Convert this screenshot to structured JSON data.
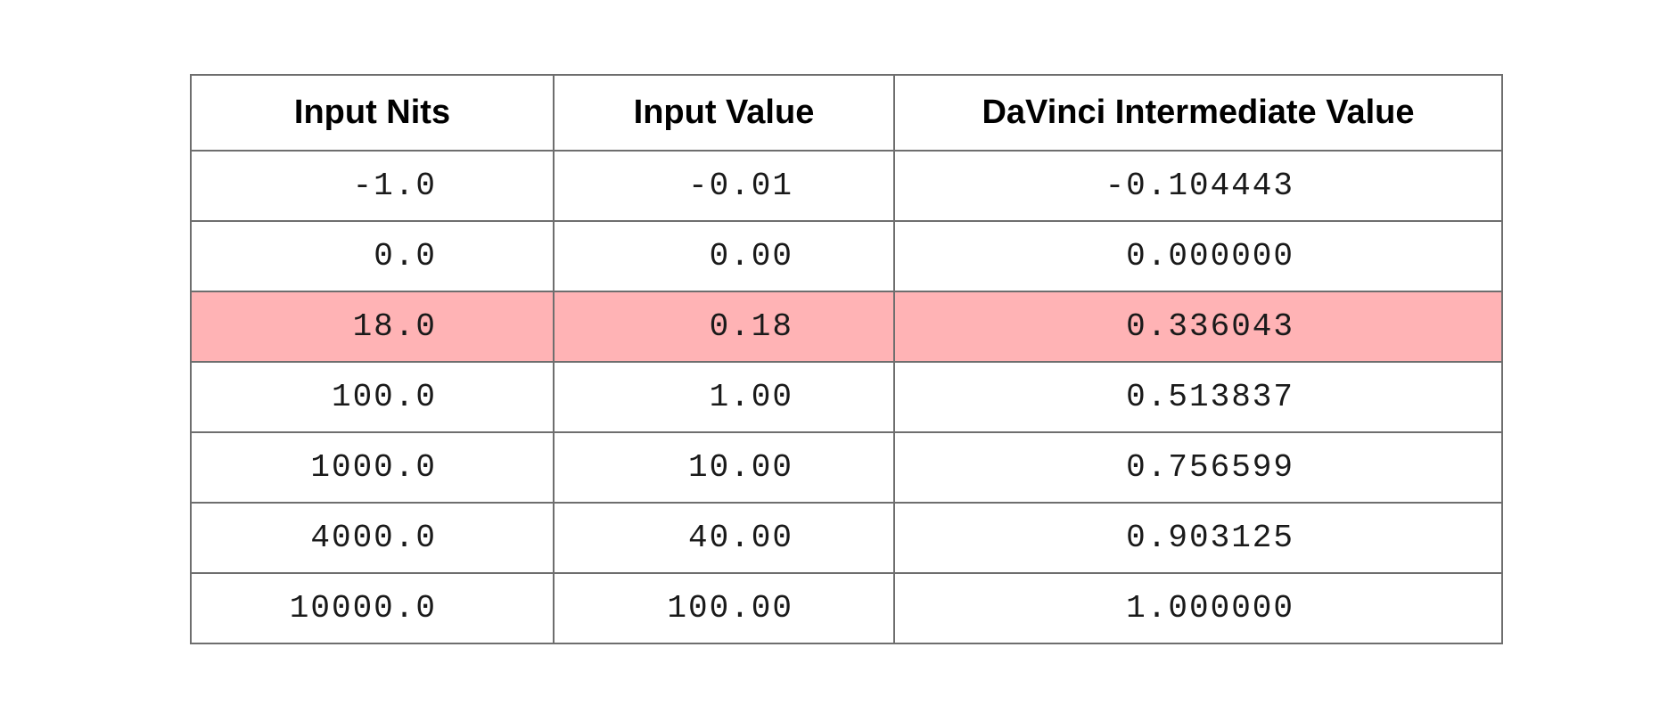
{
  "chart_data": {
    "type": "table",
    "columns": [
      "Input Nits",
      "Input Value",
      "DaVinci Intermediate Value"
    ],
    "rows": [
      {
        "input_nits": "-1.0",
        "input_value": "-0.01",
        "davinci_intermediate_value": "-0.104443",
        "highlighted": false
      },
      {
        "input_nits": "0.0",
        "input_value": "0.00",
        "davinci_intermediate_value": "0.000000",
        "highlighted": false
      },
      {
        "input_nits": "18.0",
        "input_value": "0.18",
        "davinci_intermediate_value": "0.336043",
        "highlighted": true
      },
      {
        "input_nits": "100.0",
        "input_value": "1.00",
        "davinci_intermediate_value": "0.513837",
        "highlighted": false
      },
      {
        "input_nits": "1000.0",
        "input_value": "10.00",
        "davinci_intermediate_value": "0.756599",
        "highlighted": false
      },
      {
        "input_nits": "4000.0",
        "input_value": "40.00",
        "davinci_intermediate_value": "0.903125",
        "highlighted": false
      },
      {
        "input_nits": "10000.0",
        "input_value": "100.00",
        "davinci_intermediate_value": "1.000000",
        "highlighted": false
      }
    ],
    "highlight_color": "#ffb3b5",
    "border_color": "#6e6e6e"
  }
}
